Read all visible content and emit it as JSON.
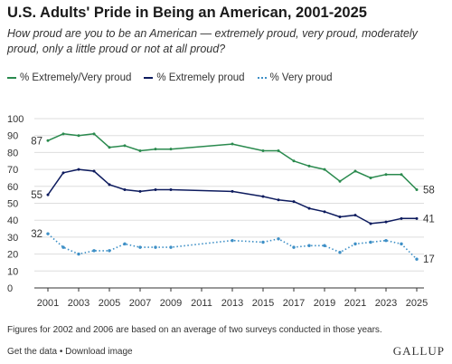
{
  "header": {
    "title": "U.S. Adults' Pride in Being an American, 2001-2025",
    "subtitle": "How proud are you to be an American — extremely proud, very proud, moderately proud, only a little proud or not at all proud?"
  },
  "footer": {
    "note": "Figures for 2002 and 2006 are based on an average of two surveys conducted in those years.",
    "get_data": "Get the data",
    "separator": "•",
    "download": "Download image",
    "brand": "GALLUP"
  },
  "colors": {
    "green": "#2a8a4e",
    "navy": "#0d1b5e",
    "blue": "#3d8fc6",
    "grid": "#dddddd",
    "axis": "#333333"
  },
  "chart_data": {
    "type": "line",
    "title": "U.S. Adults' Pride in Being an American, 2001-2025",
    "xlabel": "",
    "ylabel": "",
    "ylim": [
      0,
      100
    ],
    "yticks": [
      0,
      10,
      20,
      30,
      40,
      50,
      60,
      70,
      80,
      90,
      100
    ],
    "xlim": [
      2001,
      2025
    ],
    "xticks": [
      2001,
      2003,
      2005,
      2007,
      2009,
      2011,
      2013,
      2015,
      2017,
      2019,
      2021,
      2023,
      2025
    ],
    "grid": true,
    "legend_position": "top-left",
    "x": [
      2001,
      2002,
      2003,
      2004,
      2005,
      2006,
      2007,
      2008,
      2009,
      2013,
      2015,
      2016,
      2017,
      2018,
      2019,
      2020,
      2021,
      2022,
      2023,
      2024,
      2025
    ],
    "series": [
      {
        "name": "% Extremely/Very proud",
        "style": "solid",
        "color": "#2a8a4e",
        "values": [
          87,
          91,
          90,
          91,
          83,
          84,
          81,
          82,
          82,
          85,
          81,
          81,
          75,
          72,
          70,
          63,
          69,
          65,
          67,
          67,
          58
        ],
        "start_label": "87",
        "end_label": "58"
      },
      {
        "name": "% Extremely proud",
        "style": "solid",
        "color": "#0d1b5e",
        "values": [
          55,
          68,
          70,
          69,
          61,
          58,
          57,
          58,
          58,
          57,
          54,
          52,
          51,
          47,
          45,
          42,
          43,
          38,
          39,
          41,
          41
        ],
        "start_label": "55",
        "end_label": "41"
      },
      {
        "name": "% Very proud",
        "style": "dotted",
        "color": "#3d8fc6",
        "values": [
          32,
          24,
          20,
          22,
          22,
          26,
          24,
          24,
          24,
          28,
          27,
          29,
          24,
          25,
          25,
          21,
          26,
          27,
          28,
          26,
          17
        ],
        "start_label": "32",
        "end_label": "17"
      }
    ]
  }
}
